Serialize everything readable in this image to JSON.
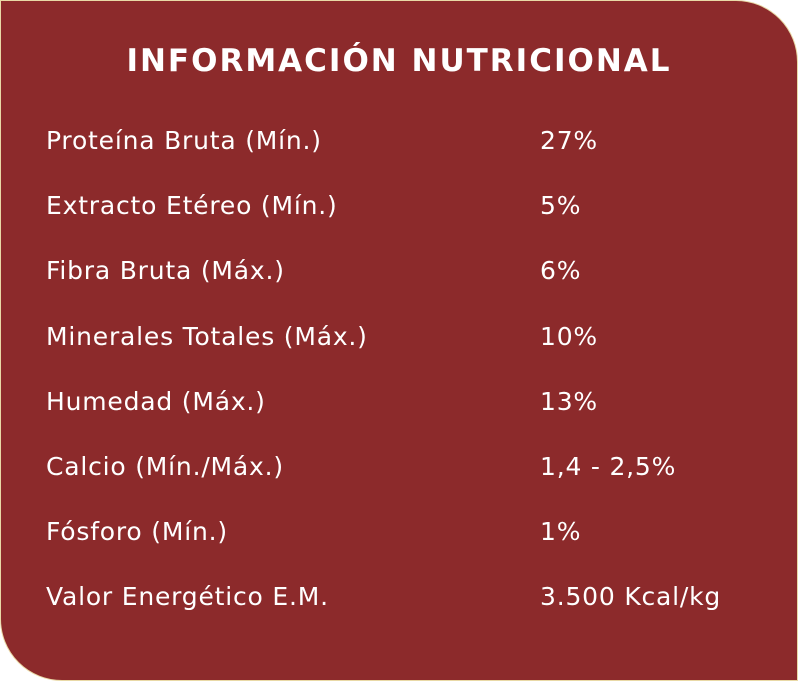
{
  "panel": {
    "title": "INFORMACIÓN NUTRICIONAL",
    "background_color": "#8c2a2b",
    "border_color": "#e9d9a6",
    "text_color": "#ffffff"
  },
  "nutrients": [
    {
      "label": "Proteína Bruta (Mín.)",
      "value": "27%"
    },
    {
      "label": "Extracto Etéreo (Mín.)",
      "value": "5%"
    },
    {
      "label": "Fibra Bruta (Máx.)",
      "value": "6%"
    },
    {
      "label": "Minerales Totales (Máx.)",
      "value": "10%"
    },
    {
      "label": "Humedad (Máx.)",
      "value": "13%"
    },
    {
      "label": "Calcio (Mín./Máx.)",
      "value": "1,4 - 2,5%"
    },
    {
      "label": "Fósforo (Mín.)",
      "value": "1%"
    },
    {
      "label": "Valor Energético E.M.",
      "value": "3.500 Kcal/kg"
    }
  ]
}
